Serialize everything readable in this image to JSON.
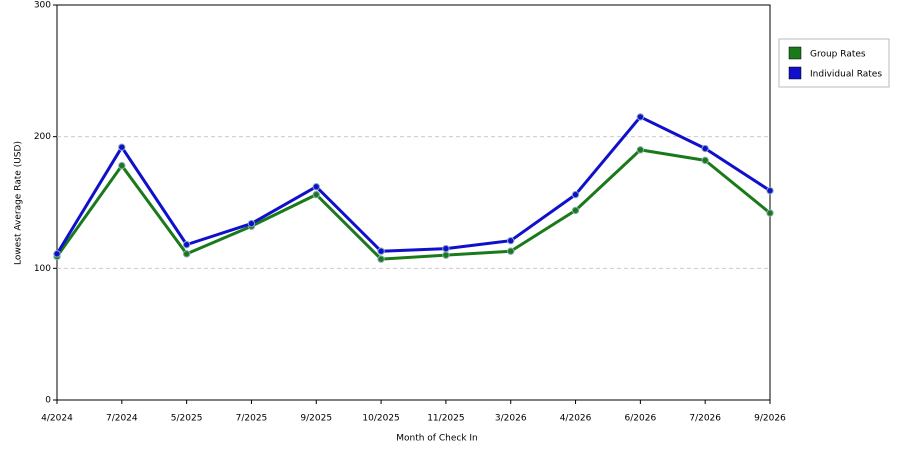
{
  "chart_data": {
    "type": "line",
    "x_label": "Month of Check In",
    "y_label": "Lowest Average Rate (USD)",
    "categories": [
      "4/2024",
      "7/2024",
      "5/2025",
      "7/2025",
      "9/2025",
      "10/2025",
      "11/2025",
      "3/2026",
      "4/2026",
      "6/2026",
      "7/2026",
      "9/2026"
    ],
    "series": [
      {
        "name": "Group Rates",
        "color": "#1a7a1a",
        "values": [
          109,
          178,
          111,
          132,
          156,
          107,
          110,
          113,
          144,
          190,
          182,
          142
        ]
      },
      {
        "name": "Individual Rates",
        "color": "#1010cc",
        "values": [
          111,
          192,
          118,
          134,
          162,
          113,
          115,
          121,
          156,
          215,
          191,
          159
        ]
      }
    ],
    "ylim": [
      0,
      300
    ],
    "yticks": [
      0,
      100,
      200,
      300
    ],
    "grid": true,
    "legend": "right"
  }
}
